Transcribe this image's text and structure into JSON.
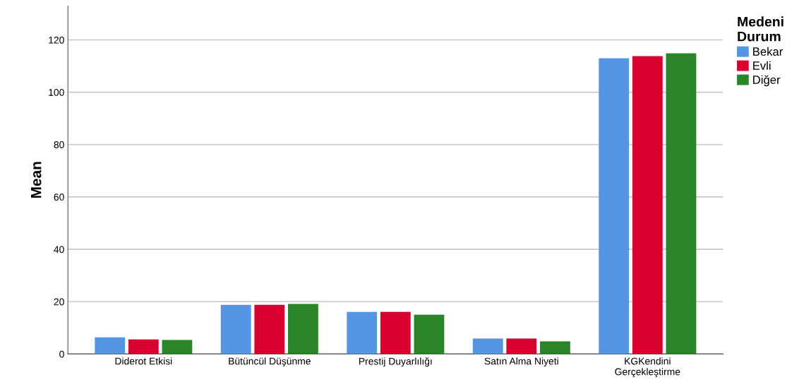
{
  "chart_data": {
    "type": "bar",
    "ylabel": "Mean",
    "legend_title": "Medeni\nDurum",
    "categories": [
      "Diderot Etkisi",
      "Bütüncül Düşünme",
      "Prestij Duyarlılığı",
      "Satın Alma Niyeti",
      "KGKendini\nGerçekleştirme"
    ],
    "series": [
      {
        "name": "Bekar",
        "color": "#5496e3",
        "values": [
          6.4,
          18.8,
          16.1,
          5.9,
          113.0
        ]
      },
      {
        "name": "Evli",
        "color": "#d8002e",
        "values": [
          5.6,
          18.8,
          16.1,
          5.9,
          113.8
        ]
      },
      {
        "name": "Diğer",
        "color": "#2a8529",
        "values": [
          5.4,
          19.1,
          15.0,
          4.8,
          114.9
        ]
      }
    ],
    "ylim": [
      0,
      133
    ],
    "yticks": [
      0,
      20,
      40,
      60,
      80,
      100,
      120
    ],
    "grid": "y",
    "legend": "top right"
  }
}
